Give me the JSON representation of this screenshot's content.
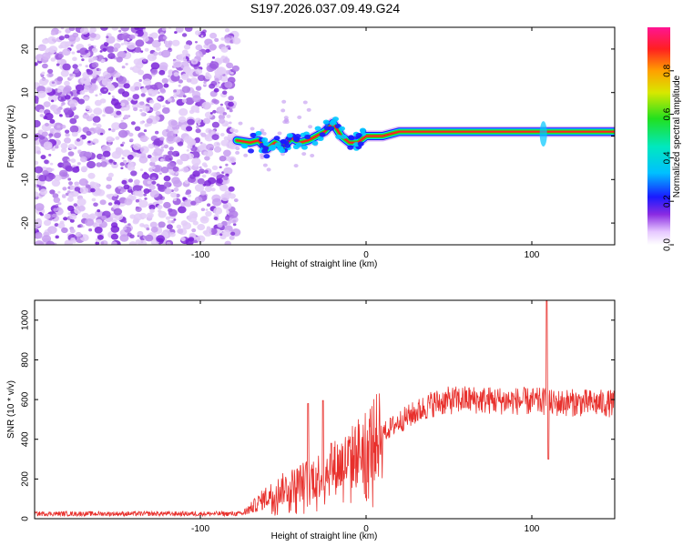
{
  "title": "S197.2026.037.09.49.G24",
  "chart_data": [
    {
      "type": "heatmap",
      "title": "S197.2026.037.09.49.G24",
      "xlabel": "Height of straight line (km)",
      "ylabel": "Frequency (Hz)",
      "xlim": [
        -200,
        150
      ],
      "ylim": [
        -25,
        25
      ],
      "xticks": [
        -100,
        0,
        100
      ],
      "yticks": [
        -20,
        -10,
        0,
        10,
        20
      ],
      "noise_region_x": [
        -200,
        -78
      ],
      "signal_trace": {
        "x": [
          -78,
          -70,
          -65,
          -60,
          -55,
          -50,
          -45,
          -40,
          -35,
          -30,
          -25,
          -20,
          -15,
          -10,
          -5,
          0,
          10,
          20,
          40,
          60,
          80,
          100,
          107,
          110,
          120,
          140,
          150
        ],
        "freq": [
          -1,
          -1.5,
          -1,
          -3,
          -1.5,
          -2.5,
          -0.5,
          -1.5,
          -1,
          0,
          1,
          3,
          0,
          -1.5,
          -1.5,
          0,
          0,
          1,
          1,
          1,
          1,
          1,
          1,
          1,
          1,
          1,
          1
        ]
      },
      "colorbar": {
        "label": "Normalized spectral amplitude",
        "ticks": [
          0.0,
          0.2,
          0.4,
          0.6,
          0.8
        ],
        "range": [
          0,
          1
        ]
      }
    },
    {
      "type": "line",
      "xlabel": "Height of straight line (km)",
      "ylabel": "SNR (10 * v/v)",
      "xlim": [
        -200,
        150
      ],
      "ylim": [
        0,
        1100
      ],
      "xticks": [
        -100,
        0,
        100
      ],
      "yticks": [
        0,
        200,
        400,
        600,
        800,
        1000
      ],
      "color": "#e8302c",
      "envelope": {
        "x": [
          -200,
          -140,
          -100,
          -75,
          -70,
          -60,
          -50,
          -40,
          -30,
          -20,
          -10,
          0,
          10,
          20,
          30,
          40,
          50,
          60,
          80,
          100,
          108,
          112,
          120,
          150
        ],
        "snr": [
          25,
          25,
          25,
          25,
          50,
          110,
          150,
          180,
          215,
          255,
          295,
          370,
          430,
          490,
          535,
          580,
          595,
          600,
          595,
          590,
          590,
          580,
          585,
          580
        ]
      },
      "spikes": [
        {
          "x": -35,
          "snr": 580
        },
        {
          "x": -26,
          "snr": 595
        },
        {
          "x": -21,
          "snr": 380
        },
        {
          "x": 109,
          "snr": 1100
        },
        {
          "x": 110,
          "snr": 300
        }
      ]
    }
  ]
}
